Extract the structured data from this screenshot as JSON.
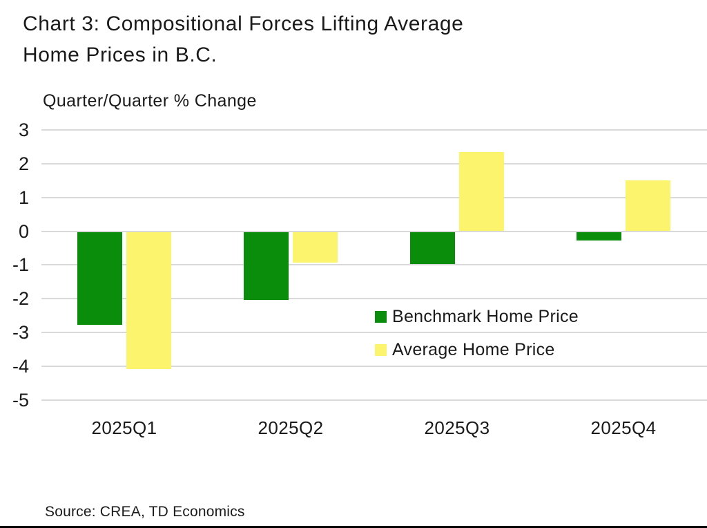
{
  "header": {
    "title_line1": "Chart 3: Compositional Forces Lifting Average",
    "title_line2": "Home Prices in B.C."
  },
  "chart_data": {
    "type": "bar",
    "title": "Chart 3: Compositional Forces Lifting Average Home Prices in B.C.",
    "axis_title": "Quarter/Quarter % Change",
    "categories": [
      "2025Q1",
      "2025Q2",
      "2025Q3",
      "2025Q4"
    ],
    "series": [
      {
        "name": "Benchmark Home Price",
        "color": "#0a8d0a",
        "values": [
          -2.75,
          -2.0,
          -0.95,
          -0.25
        ]
      },
      {
        "name": "Average Home Price",
        "color": "#fcf46c",
        "values": [
          -4.05,
          -0.9,
          2.35,
          1.5
        ]
      }
    ],
    "ylim": [
      -5,
      3
    ],
    "ytick_step": 1,
    "grid": true,
    "legend_position": "inside-right"
  },
  "colors": {
    "grid": "#d9d9d9",
    "text": "#1a1a1a",
    "bottom_border": "#000000"
  },
  "footer": {
    "source": "Source: CREA, TD Economics"
  }
}
